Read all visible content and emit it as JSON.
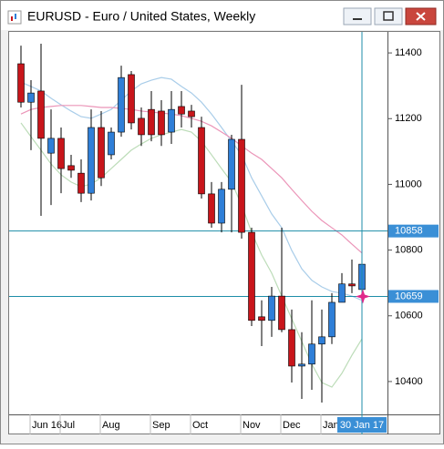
{
  "window_title": "EURUSD - Euro / United States, Weekly",
  "chart_data": {
    "type": "candlestick",
    "categories": [
      null,
      "Jun 16",
      null,
      null,
      "Jul",
      null,
      null,
      null,
      "Aug",
      null,
      null,
      null,
      null,
      "Sep",
      null,
      null,
      null,
      "Oct",
      null,
      null,
      null,
      null,
      "Nov",
      null,
      null,
      null,
      "Dec",
      null,
      null,
      null,
      "Jan",
      null,
      null,
      null,
      "30 Jan 17"
    ],
    "open": [
      11367,
      11250,
      11284,
      11095,
      11140,
      11057,
      11034,
      10973,
      11173,
      11090,
      11159,
      11334,
      11201,
      11228,
      11223,
      11159,
      11237,
      11223,
      11173,
      10971,
      10882,
      10985,
      11137,
      10854,
      10597,
      10586,
      10660,
      10558,
      10447,
      10453,
      10514,
      10536,
      10641,
      10697,
      10680
    ],
    "high": [
      11422,
      11317,
      11428,
      11228,
      11173,
      11090,
      11076,
      11228,
      11223,
      11173,
      11361,
      11345,
      11234,
      11284,
      11256,
      11284,
      11284,
      11242,
      11206,
      11007,
      11007,
      11151,
      11303,
      10868,
      10647,
      10688,
      10868,
      10619,
      10550,
      10647,
      10619,
      10669,
      10730,
      10771,
      10827
    ],
    "low": [
      11234,
      11104,
      10904,
      10937,
      10973,
      11020,
      10946,
      10951,
      10995,
      11076,
      11145,
      11167,
      11117,
      11131,
      11117,
      11123,
      11173,
      11173,
      10957,
      10868,
      10854,
      10854,
      10835,
      10569,
      10508,
      10536,
      10550,
      10397,
      10347,
      10375,
      10336,
      10514,
      10641,
      10669,
      10660
    ],
    "close": [
      11250,
      11278,
      11140,
      11140,
      11048,
      11043,
      10973,
      11173,
      11020,
      11159,
      11325,
      11187,
      11151,
      11151,
      11151,
      11228,
      11214,
      11206,
      10971,
      10882,
      10985,
      11137,
      10854,
      10586,
      10586,
      10660,
      10558,
      10447,
      10453,
      10514,
      10536,
      10641,
      10697,
      10691,
      10757
    ],
    "up_color": "#2f7fd8",
    "down_color": "#c8151b",
    "series": [
      {
        "color": "#a9cde9",
        "values": [
          11311,
          11298,
          11284,
          11262,
          11242,
          11223,
          11206,
          11201,
          11214,
          11228,
          11256,
          11284,
          11306,
          11317,
          11325,
          11320,
          11298,
          11278,
          11250,
          11214,
          11173,
          11131,
          11090,
          11020,
          10965,
          10910,
          10868,
          10799,
          10743,
          10708,
          10688,
          10674,
          10669,
          10660,
          10647
        ]
      },
      {
        "color": "#eb95b8",
        "values": [
          11214,
          11228,
          11234,
          11237,
          11240,
          11240,
          11240,
          11237,
          11234,
          11234,
          11231,
          11228,
          11223,
          11220,
          11217,
          11214,
          11209,
          11201,
          11192,
          11178,
          11159,
          11140,
          11117,
          11095,
          11076,
          11048,
          11020,
          10985,
          10951,
          10918,
          10890,
          10868,
          10846,
          10818,
          10791
        ]
      },
      {
        "color": "#bcdcb8",
        "values": [
          11187,
          11145,
          11104,
          11062,
          11029,
          11007,
          10993,
          11001,
          11020,
          11048,
          11076,
          11104,
          11123,
          11140,
          11151,
          11159,
          11167,
          11159,
          11131,
          11090,
          11048,
          11007,
          10937,
          10854,
          10785,
          10730,
          10660,
          10591,
          10522,
          10453,
          10397,
          10383,
          10425,
          10480,
          10530
        ]
      }
    ],
    "hlines": [
      10858,
      10659
    ],
    "ylim": [
      10300,
      11464
    ],
    "yticks": [
      10400,
      10600,
      10800,
      11000,
      11200,
      11400
    ]
  }
}
